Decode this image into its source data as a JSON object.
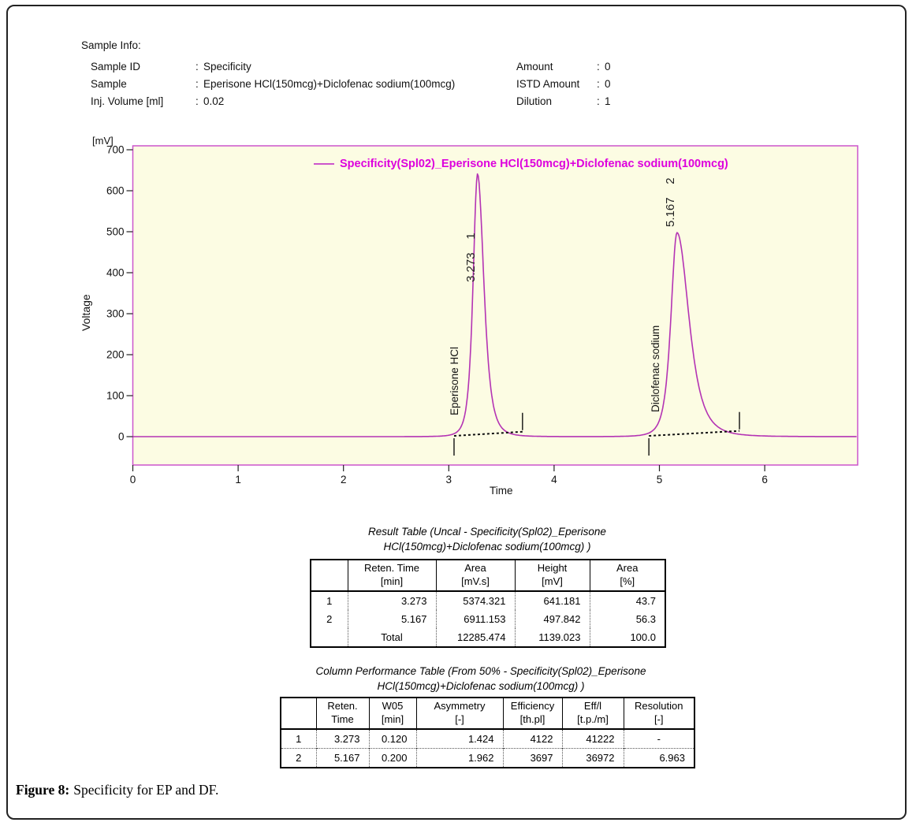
{
  "sample_info": {
    "heading": "Sample Info:",
    "left": [
      {
        "label": "Sample ID",
        "sep": ":",
        "value": "Specificity"
      },
      {
        "label": "Sample",
        "sep": ":",
        "value": "Eperisone HCl(150mcg)+Diclofenac sodium(100mcg)"
      },
      {
        "label": "Inj. Volume [ml]",
        "sep": ":",
        "value": "0.02"
      }
    ],
    "right": [
      {
        "label": "Amount",
        "sep": ":",
        "value": "0"
      },
      {
        "label": "ISTD Amount",
        "sep": ":",
        "value": "0"
      },
      {
        "label": "Dilution",
        "sep": ":",
        "value": "1"
      }
    ]
  },
  "chart_data": {
    "type": "line",
    "legend": "Specificity(Spl02)_Eperisone HCl(150mcg)+Diclofenac sodium(100mcg)",
    "legend_position": "top-center",
    "xlabel": "Time",
    "ylabel": "Voltage",
    "y_axis_unit": "[mV]",
    "x_ticks": [
      0,
      1,
      2,
      3,
      4,
      5,
      6
    ],
    "y_ticks": [
      0,
      100,
      200,
      300,
      400,
      500,
      600,
      700
    ],
    "xlim": [
      0,
      6.9
    ],
    "ylim": [
      0,
      700
    ],
    "grid": false,
    "plot_bg": "#fcfce3",
    "line_color": "#b433b4",
    "frame_color": "#cc55cc",
    "legend_color": "#dd00dd",
    "baseline_mv": 0,
    "peaks": [
      {
        "number": 1,
        "compound": "Eperisone HCl",
        "retention_time_min": 3.273,
        "height_mv": 641.181,
        "area_mvs": 5374.321,
        "area_pct": 43.7,
        "w05_min": 0.12,
        "asymmetry": 1.424
      },
      {
        "number": 2,
        "compound": "Diclofenac sodium",
        "retention_time_min": 5.167,
        "height_mv": 497.842,
        "area_mvs": 6911.153,
        "area_pct": 56.3,
        "w05_min": 0.2,
        "asymmetry": 1.962
      }
    ],
    "integration_marks": [
      {
        "t_start": 3.05,
        "t_end": 3.7,
        "end_mv": 12
      },
      {
        "t_start": 4.9,
        "t_end": 5.76,
        "end_mv": 14
      }
    ]
  },
  "result_table": {
    "title_line1": "Result Table (Uncal - Specificity(Spl02)_Eperisone",
    "title_line2": "HCl(150mcg)+Diclofenac sodium(100mcg) )",
    "headers": [
      [
        "",
        ""
      ],
      [
        "Reten. Time",
        "[min]"
      ],
      [
        "Area",
        "[mV.s]"
      ],
      [
        "Height",
        "[mV]"
      ],
      [
        "Area",
        "[%]"
      ]
    ],
    "rows": [
      [
        "1",
        "3.273",
        "5374.321",
        "641.181",
        "43.7"
      ],
      [
        "2",
        "5.167",
        "6911.153",
        "497.842",
        "56.3"
      ],
      [
        "",
        "Total",
        "12285.474",
        "1139.023",
        "100.0"
      ]
    ]
  },
  "performance_table": {
    "title_line1": "Column Performance Table (From 50% - Specificity(Spl02)_Eperisone",
    "title_line2": "HCl(150mcg)+Diclofenac sodium(100mcg) )",
    "headers": [
      [
        "",
        ""
      ],
      [
        "Reten.",
        "Time"
      ],
      [
        "W05",
        "[min]"
      ],
      [
        "Asymmetry",
        "[-]"
      ],
      [
        "Efficiency",
        "[th.pl]"
      ],
      [
        "Eff/l",
        "[t.p./m]"
      ],
      [
        "Resolution",
        "[-]"
      ]
    ],
    "rows": [
      [
        "1",
        "3.273",
        "0.120",
        "1.424",
        "4122",
        "41222",
        "-"
      ],
      [
        "2",
        "5.167",
        "0.200",
        "1.962",
        "3697",
        "36972",
        "6.963"
      ]
    ]
  },
  "caption": {
    "prefix": "Figure 8:",
    "text": "Specificity for EP and DF."
  }
}
